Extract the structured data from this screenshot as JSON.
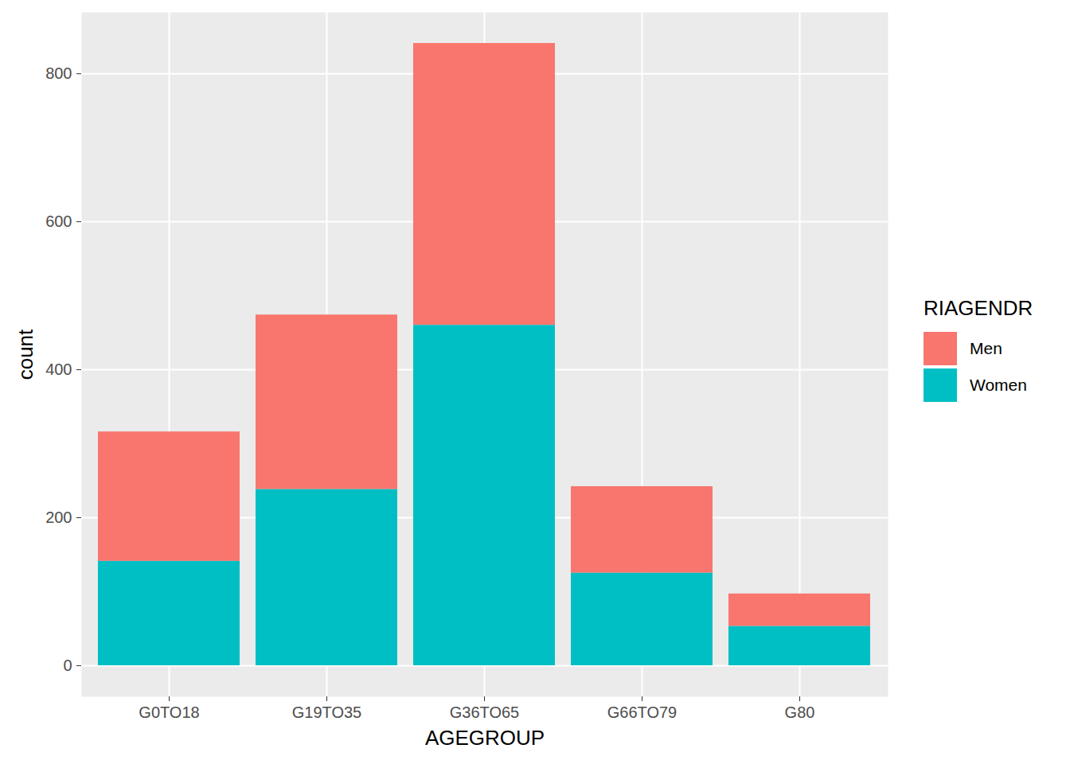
{
  "chart_data": {
    "type": "bar",
    "stacked": true,
    "grid": true,
    "legend": "right",
    "x_label": "AGEGROUP",
    "y_label": "count",
    "legend_title": "RIAGENDR",
    "categories": [
      "G0TO18",
      "G19TO35",
      "G36TO65",
      "G66TO79",
      "G80"
    ],
    "series": [
      {
        "name": "Men",
        "color": "#F8766D",
        "values": [
          175,
          236,
          381,
          117,
          44
        ]
      },
      {
        "name": "Women",
        "color": "#00BFC4",
        "values": [
          141,
          238,
          460,
          125,
          53
        ]
      }
    ],
    "ylim": [
      -42,
      883
    ],
    "yticks": [
      0,
      200,
      400,
      600,
      800
    ]
  }
}
